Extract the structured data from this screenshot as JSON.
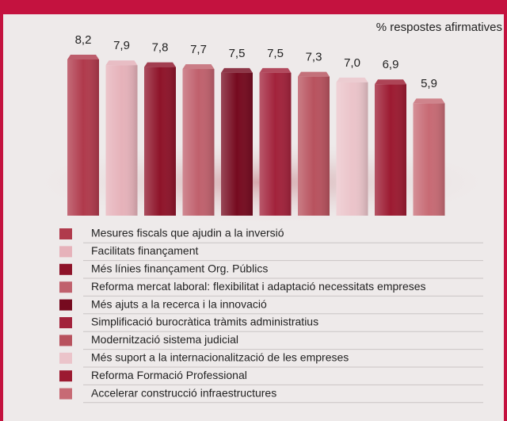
{
  "chart_data": {
    "type": "bar",
    "subtitle": "% respostes afirmatives",
    "categories": [
      "Mesures fiscals que ajudin a la inversió",
      "Facilitats finançament",
      "Més línies finançament Org. Públics",
      "Reforma mercat laboral: flexibilitat i adaptació necessitats empreses",
      "Més ajuts a la recerca i la innovació",
      "Simplificació burocràtica tràmits administratius",
      "Modernització sistema judicial",
      "Més suport a la internacionalització de les empreses",
      "Reforma Formació Professional",
      "Accelerar construcció infraestructures"
    ],
    "values": [
      8.2,
      7.9,
      7.8,
      7.7,
      7.5,
      7.5,
      7.3,
      7.0,
      6.9,
      5.9
    ],
    "value_labels": [
      "8,2",
      "7,9",
      "7,8",
      "7,7",
      "7,5",
      "7,5",
      "7,3",
      "7,0",
      "6,9",
      "5,9"
    ],
    "colors": [
      "#b03a4c",
      "#e6b2ba",
      "#8e1329",
      "#c0616d",
      "#760a1f",
      "#a2223b",
      "#b8525e",
      "#ebc4ca",
      "#9c1a31",
      "#c76a74"
    ]
  }
}
